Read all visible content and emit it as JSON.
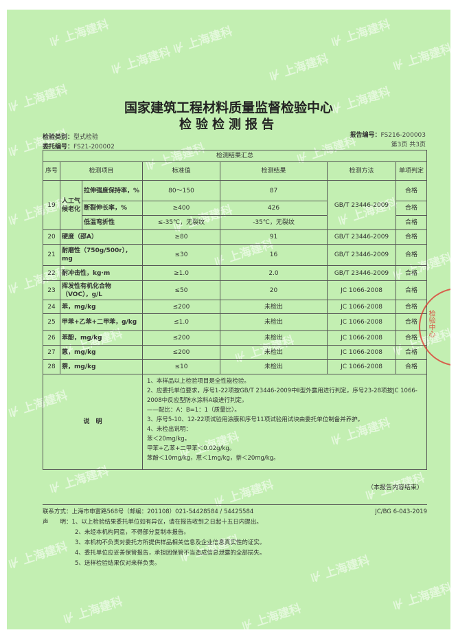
{
  "watermark": "上海建科",
  "title": "国家建筑工程材料质量监督检验中心",
  "subtitle": "检验检测报告",
  "meta": {
    "type_label": "检验类别：",
    "type": "型式检验",
    "entrust_label": "委托编号：",
    "entrust": "FS21-200002",
    "report_label": "报告编号：",
    "report": "FS216-200003",
    "page": "第3页 共3页"
  },
  "table": {
    "caption": "检测结果汇总",
    "headers": [
      "序号",
      "检测项目",
      "标准值",
      "检测结果",
      "检测方法",
      "单项判定"
    ],
    "group19": {
      "no": "19",
      "item": "人工气候老化",
      "method": "GB/T 23446-2009",
      "subs": [
        {
          "item": "拉伸强度保持率，%",
          "std": "80～150",
          "result": "87",
          "verdict": "合格"
        },
        {
          "item": "断裂伸长率，%",
          "std": "≥400",
          "result": "426",
          "verdict": "合格"
        },
        {
          "item": "低温弯折性",
          "std": "≤-35℃，无裂纹",
          "result": "-35℃，无裂纹",
          "verdict": "合格"
        }
      ]
    },
    "rows": [
      {
        "no": "20",
        "item": "硬度（邵A）",
        "std": "≥80",
        "result": "91",
        "method": "GB/T 23446-2009",
        "verdict": "合格"
      },
      {
        "no": "21",
        "item": "耐磨性（750g/500r），mg",
        "std": "≤30",
        "result": "16",
        "method": "GB/T 23446-2009",
        "verdict": "合格"
      },
      {
        "no": "22",
        "item": "耐冲击性，kg·m",
        "std": "≥1.0",
        "result": "2.0",
        "method": "GB/T 23446-2009",
        "verdict": "合格"
      },
      {
        "no": "23",
        "item": "挥发性有机化合物（VOC），g/L",
        "std": "≤50",
        "result": "20",
        "method": "JC 1066-2008",
        "verdict": "合格"
      },
      {
        "no": "24",
        "item": "苯，mg/kg",
        "std": "≤200",
        "result": "未检出",
        "method": "JC 1066-2008",
        "verdict": "合格"
      },
      {
        "no": "25",
        "item": "甲苯+乙苯+二甲苯，g/kg",
        "std": "≤1.0",
        "result": "未检出",
        "method": "JC 1066-2008",
        "verdict": "合格"
      },
      {
        "no": "26",
        "item": "苯酚，mg/kg",
        "std": "≤200",
        "result": "未检出",
        "method": "JC 1066-2008",
        "verdict": "合格"
      },
      {
        "no": "27",
        "item": "蒽，mg/kg",
        "std": "≤200",
        "result": "未检出",
        "method": "JC 1066-2008",
        "verdict": "合格"
      },
      {
        "no": "28",
        "item": "萘，mg/kg",
        "std": "≤10",
        "result": "未检出",
        "method": "JC 1066-2008",
        "verdict": "合格"
      }
    ],
    "notes_label": "说　明",
    "notes": [
      "1、本样品以上检验项目是全性能检验。",
      "2、应委托单位要求，序号1-22项按GB/T 23446-2009中Ⅱ型外露用进行判定，序号23-28项按JC 1066-2008中反应型防水涂料A级进行判定。",
      "——配比：A：B=1：1（质量比）。",
      "3、序号5-10、12-22项试验用涂膜和序号11项试验用试块由委托单位制备并养护。",
      "4、未检出说明：",
      "苯＜20mg/kg。",
      "甲苯+乙苯+二甲苯＜0.02g/kg。",
      "苯酚＜10mg/kg，蒽＜1mg/kg，萘＜20mg/kg。"
    ]
  },
  "stamp": "检验中心",
  "end_note": "（本报告内容结束）",
  "footer": {
    "contact": "联系方式：上海市申富路568号（邮编：201108）021-54428584 / 54425584",
    "code": "JC/BG 6-043-2019",
    "decl_label": "声　　明：",
    "decls": [
      "1、以上检验结果委托单位如有异议，请在报告收到之日起十五日内提出。",
      "2、未经本机构同意，不得部分复制本报告。",
      "3、本机构不负责对委托方所提供样品相关信息及企业信息真实性的证实。",
      "4、委托单位应妥善保管报告，承担因保管不当造成信息泄露的全部损失。",
      "5、送样检验结果仅对来样负责。"
    ]
  },
  "colors": {
    "paper": "#c3efb2",
    "stamp": "#dc3c32"
  }
}
